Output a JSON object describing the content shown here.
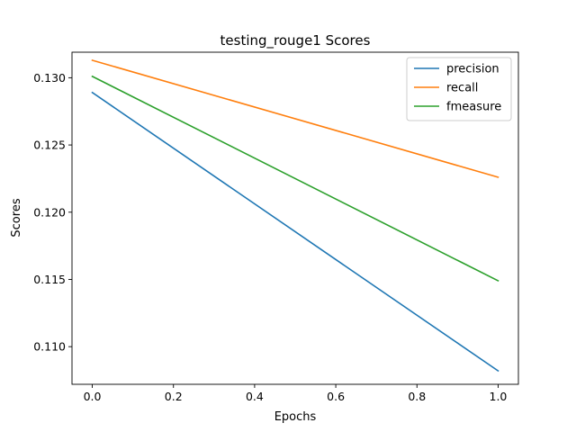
{
  "chart_data": {
    "type": "line",
    "title": "testing_rouge1 Scores",
    "xlabel": "Epochs",
    "ylabel": "Scores",
    "xlim": [
      -0.05,
      1.05
    ],
    "ylim": [
      0.1072,
      0.1319
    ],
    "x_ticks": [
      0.0,
      0.2,
      0.4,
      0.6,
      0.8,
      1.0
    ],
    "x_tick_labels": [
      "0.0",
      "0.2",
      "0.4",
      "0.6",
      "0.8",
      "1.0"
    ],
    "y_ticks": [
      0.11,
      0.115,
      0.12,
      0.125,
      0.13
    ],
    "y_tick_labels": [
      "0.110",
      "0.115",
      "0.120",
      "0.125",
      "0.130"
    ],
    "grid": false,
    "legend_position": "top-right",
    "x": [
      0,
      1
    ],
    "series": [
      {
        "name": "precision",
        "color": "#1f77b4",
        "values": [
          0.1289,
          0.1082
        ]
      },
      {
        "name": "recall",
        "color": "#ff7f0e",
        "values": [
          0.1313,
          0.1226
        ]
      },
      {
        "name": "fmeasure",
        "color": "#2ca02c",
        "values": [
          0.1301,
          0.1149
        ]
      }
    ]
  }
}
